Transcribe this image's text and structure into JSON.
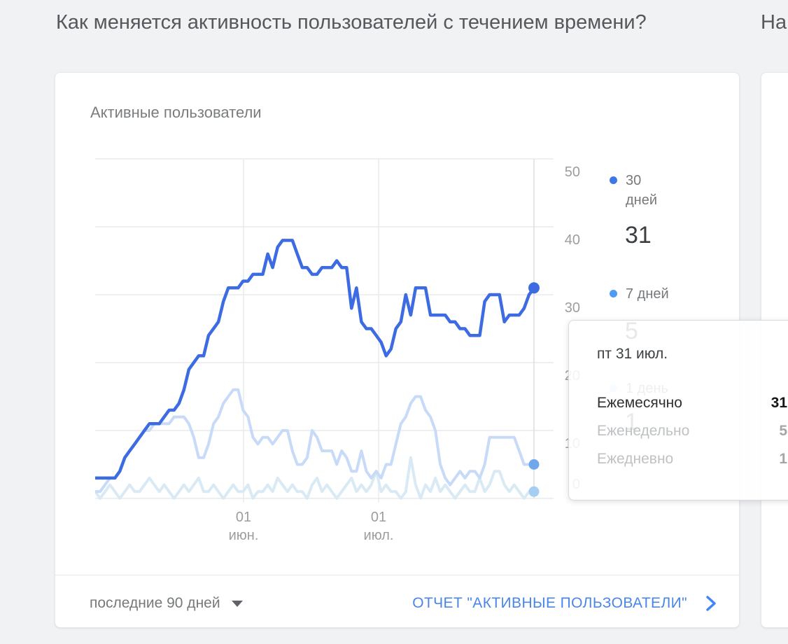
{
  "headings": {
    "left": "Как меняется активность пользователей с течением времени?",
    "right_partial": "На"
  },
  "card": {
    "chart_title": "Активные пользователи"
  },
  "legend": {
    "items": [
      {
        "label": "30 дней",
        "value": "31",
        "dot_color": "#3d76e9"
      },
      {
        "label": "7 дней",
        "value": "5",
        "dot_color": "#4d9bf5"
      },
      {
        "label": "1 день",
        "value": "1",
        "dot_color": "#c3dcfa"
      }
    ]
  },
  "tooltip": {
    "date": "пт 31 июл.",
    "rows": [
      {
        "label": "Ежемесячно",
        "value": "31"
      },
      {
        "label": "Еженедельно",
        "value": "5"
      },
      {
        "label": "Ежедневно",
        "value": "1"
      }
    ]
  },
  "footer": {
    "range_label": "последние 90 дней",
    "report_link": "ОТЧЕТ \"АКТИВНЫЕ ПОЛЬЗОВАТЕЛИ\""
  },
  "chart_data": {
    "type": "line",
    "title": "Активные пользователи",
    "x_range_days": 90,
    "ylim": [
      0,
      50
    ],
    "grid": true,
    "legend_position": "right",
    "y_ticks": [
      "50",
      "40",
      "30",
      "20",
      "10",
      "0"
    ],
    "x_ticks": [
      {
        "line1": "01",
        "line2": "июн."
      },
      {
        "line1": "01",
        "line2": "июл."
      }
    ],
    "series": [
      {
        "name": "30 дней",
        "color": "#3d6be1",
        "dot_color": "#3d6be1",
        "values": [
          3,
          3,
          3,
          3,
          3,
          4,
          6,
          7,
          8,
          9,
          10,
          11,
          11,
          11,
          12,
          13,
          13,
          14,
          16,
          19,
          20,
          21,
          21,
          24,
          25,
          26,
          29,
          31,
          31,
          31,
          32,
          32,
          33,
          33,
          33,
          36,
          34,
          37,
          38,
          38,
          38,
          36,
          34,
          34,
          33,
          33,
          34,
          34,
          34,
          35,
          34,
          34,
          28,
          31,
          26,
          25,
          25,
          24,
          23,
          21,
          22,
          25,
          26,
          30,
          27,
          31,
          31,
          31,
          27,
          27,
          27,
          27,
          26,
          26,
          25,
          25,
          24,
          24,
          24,
          29,
          30,
          30,
          30,
          26,
          27,
          27,
          27,
          28,
          30,
          31
        ]
      },
      {
        "name": "7 дней",
        "color": "#c7daf7",
        "dot_color": "#70a7ec",
        "values": [
          1,
          1,
          2,
          3,
          3,
          4,
          6,
          7,
          8,
          9,
          10,
          10,
          11,
          11,
          11,
          11,
          12,
          12,
          12,
          11,
          9,
          6,
          6,
          8,
          11,
          12,
          14,
          15,
          16,
          16,
          13,
          12,
          9,
          8,
          9,
          9,
          8,
          9,
          10,
          10,
          7,
          5,
          5,
          6,
          10,
          9,
          7,
          7,
          7,
          5,
          7,
          6,
          4,
          4,
          7,
          4,
          3,
          4,
          3,
          5,
          5,
          8,
          11,
          12,
          14,
          15,
          15,
          13,
          12,
          10,
          5,
          3,
          2,
          3,
          4,
          3,
          4,
          4,
          3,
          5,
          9,
          9,
          9,
          9,
          9,
          9,
          7,
          5,
          5,
          5
        ]
      },
      {
        "name": "1 день",
        "color": "#d9eaf5",
        "dot_color": "#a6cdf2",
        "values": [
          1,
          0,
          1,
          2,
          1,
          0,
          1,
          2,
          1,
          1,
          2,
          3,
          2,
          1,
          2,
          1,
          0,
          1,
          2,
          1,
          2,
          3,
          1,
          1,
          2,
          1,
          0,
          1,
          2,
          1,
          1,
          2,
          0,
          1,
          1,
          2,
          1,
          3,
          2,
          1,
          2,
          1,
          1,
          0,
          2,
          3,
          1,
          2,
          1,
          0,
          1,
          2,
          3,
          1,
          2,
          1,
          2,
          4,
          1,
          2,
          1,
          1,
          0,
          1,
          6,
          2,
          0,
          2,
          1,
          3,
          1,
          2,
          1,
          0,
          1,
          2,
          1,
          1,
          3,
          1,
          2,
          4,
          4,
          2,
          1,
          2,
          1,
          0,
          1,
          1
        ]
      }
    ]
  }
}
